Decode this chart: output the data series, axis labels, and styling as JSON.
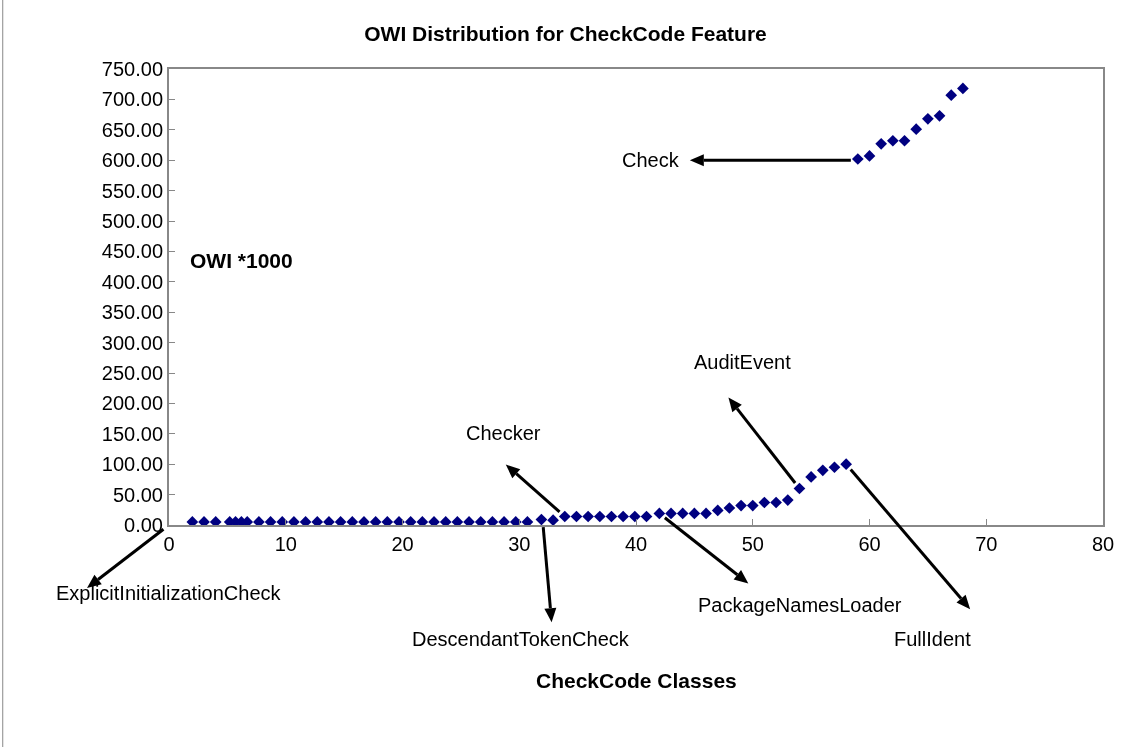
{
  "chart_data": {
    "type": "scatter",
    "title": "OWI Distribution for CheckCode Feature",
    "ylabel": "OWI *1000",
    "x": [
      2,
      3,
      4,
      5.2,
      5.7,
      6.2,
      6.7,
      7.7,
      8.7,
      9.7,
      10.7,
      11.7,
      12.7,
      13.7,
      14.7,
      15.7,
      16.7,
      17.7,
      18.7,
      19.7,
      20.7,
      21.7,
      22.7,
      23.7,
      24.7,
      25.7,
      26.7,
      27.7,
      28.7,
      29.7,
      30.7,
      31.9,
      32.9,
      33.9,
      34.9,
      35.9,
      36.9,
      37.9,
      38.9,
      39.9,
      40.9,
      42,
      43,
      44,
      45,
      46,
      47,
      48,
      49,
      50,
      51,
      52,
      53,
      54,
      55,
      56,
      57,
      58,
      59,
      60,
      61,
      62,
      63,
      64,
      65,
      66,
      67,
      68
    ],
    "values": [
      5,
      5,
      5,
      5,
      5,
      5,
      5,
      5,
      5,
      5,
      5,
      5,
      5,
      5,
      5,
      5,
      5,
      5,
      5,
      5,
      5,
      5,
      5,
      5,
      5,
      5,
      5,
      5,
      5,
      5,
      5,
      9,
      8,
      14,
      14,
      14,
      14,
      14,
      14,
      14,
      14,
      19,
      19,
      19,
      19,
      19,
      24,
      28,
      32,
      32,
      37,
      37,
      41,
      60,
      79,
      90,
      95,
      100,
      602,
      607,
      627,
      632,
      632,
      651,
      668,
      673,
      707,
      718
    ],
    "color": "#000080",
    "marker": "diamond",
    "grid": false,
    "xlim": [
      0,
      80
    ],
    "xticks": [
      0,
      10,
      20,
      30,
      40,
      50,
      60,
      70,
      80
    ],
    "ylim": [
      0,
      750
    ],
    "yticks": [
      {
        "value": 0,
        "label": "0.00"
      },
      {
        "value": 50,
        "label": "50.00"
      },
      {
        "value": 100,
        "label": "100.00"
      },
      {
        "value": 150,
        "label": "150.00"
      },
      {
        "value": 200,
        "label": "200.00"
      },
      {
        "value": 250,
        "label": "250.00"
      },
      {
        "value": 300,
        "label": "300.00"
      },
      {
        "value": 350,
        "label": "350.00"
      },
      {
        "value": 400,
        "label": "400.00"
      },
      {
        "value": 450,
        "label": "450.00"
      },
      {
        "value": 500,
        "label": "500.00"
      },
      {
        "value": 550,
        "label": "550.00"
      },
      {
        "value": 600,
        "label": "600.00"
      },
      {
        "value": 650,
        "label": "650.00"
      },
      {
        "value": 700,
        "label": "700.00"
      },
      {
        "value": 750,
        "label": "750.00"
      }
    ],
    "annotations": [
      "ExplicitInitializationCheck",
      {
        "text": "DescendantTokenCheck",
        "x": 32,
        "y": 8
      },
      "Checker",
      {
        "text": "PackageNamesLoader",
        "x": 42,
        "y": 19
      },
      "AuditEvent",
      "FullIdent",
      {
        "text": "Check",
        "x": 59,
        "y": 600
      },
      "CheckCode Classes"
    ]
  }
}
